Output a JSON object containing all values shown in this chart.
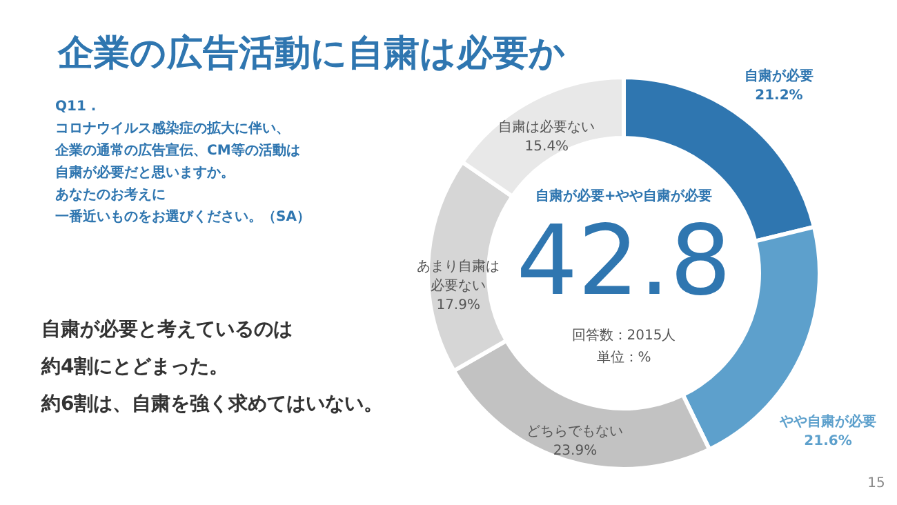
{
  "chart_data": {
    "type": "donut",
    "title": "企業の広告活動に自粛は必要か",
    "categories": [
      "自粛が必要",
      "やや自粛が必要",
      "どちらでもない",
      "あまり自粛は必要ない",
      "自粛は必要ない"
    ],
    "values": [
      21.2,
      21.6,
      23.9,
      17.9,
      15.4
    ],
    "colors": [
      "#2f76b0",
      "#5da0cc",
      "#c2c2c2",
      "#d6d6d6",
      "#e8e8e8"
    ],
    "value_labels": [
      "21.2%",
      "21.6%",
      "23.9%",
      "17.9%",
      "15.4%"
    ],
    "legend": false,
    "annotations": [
      "Q11 .",
      "コロナウイルス感染症の拡大に伴い、",
      "企業の通常の広告宣伝、CM等の活動は",
      "自粛が必要だと思いますか。",
      "あなたのお考えに",
      "一番近いものをお選びください。（SA）",
      "自粛が必要+やや自粛が必要",
      "42.8",
      "回答数：2015人",
      "単位：%",
      "自粛が必要と考えているのは",
      "約4割にとどまった。",
      "約6割は、自粛を強く求めてはいない。",
      "15"
    ]
  }
}
